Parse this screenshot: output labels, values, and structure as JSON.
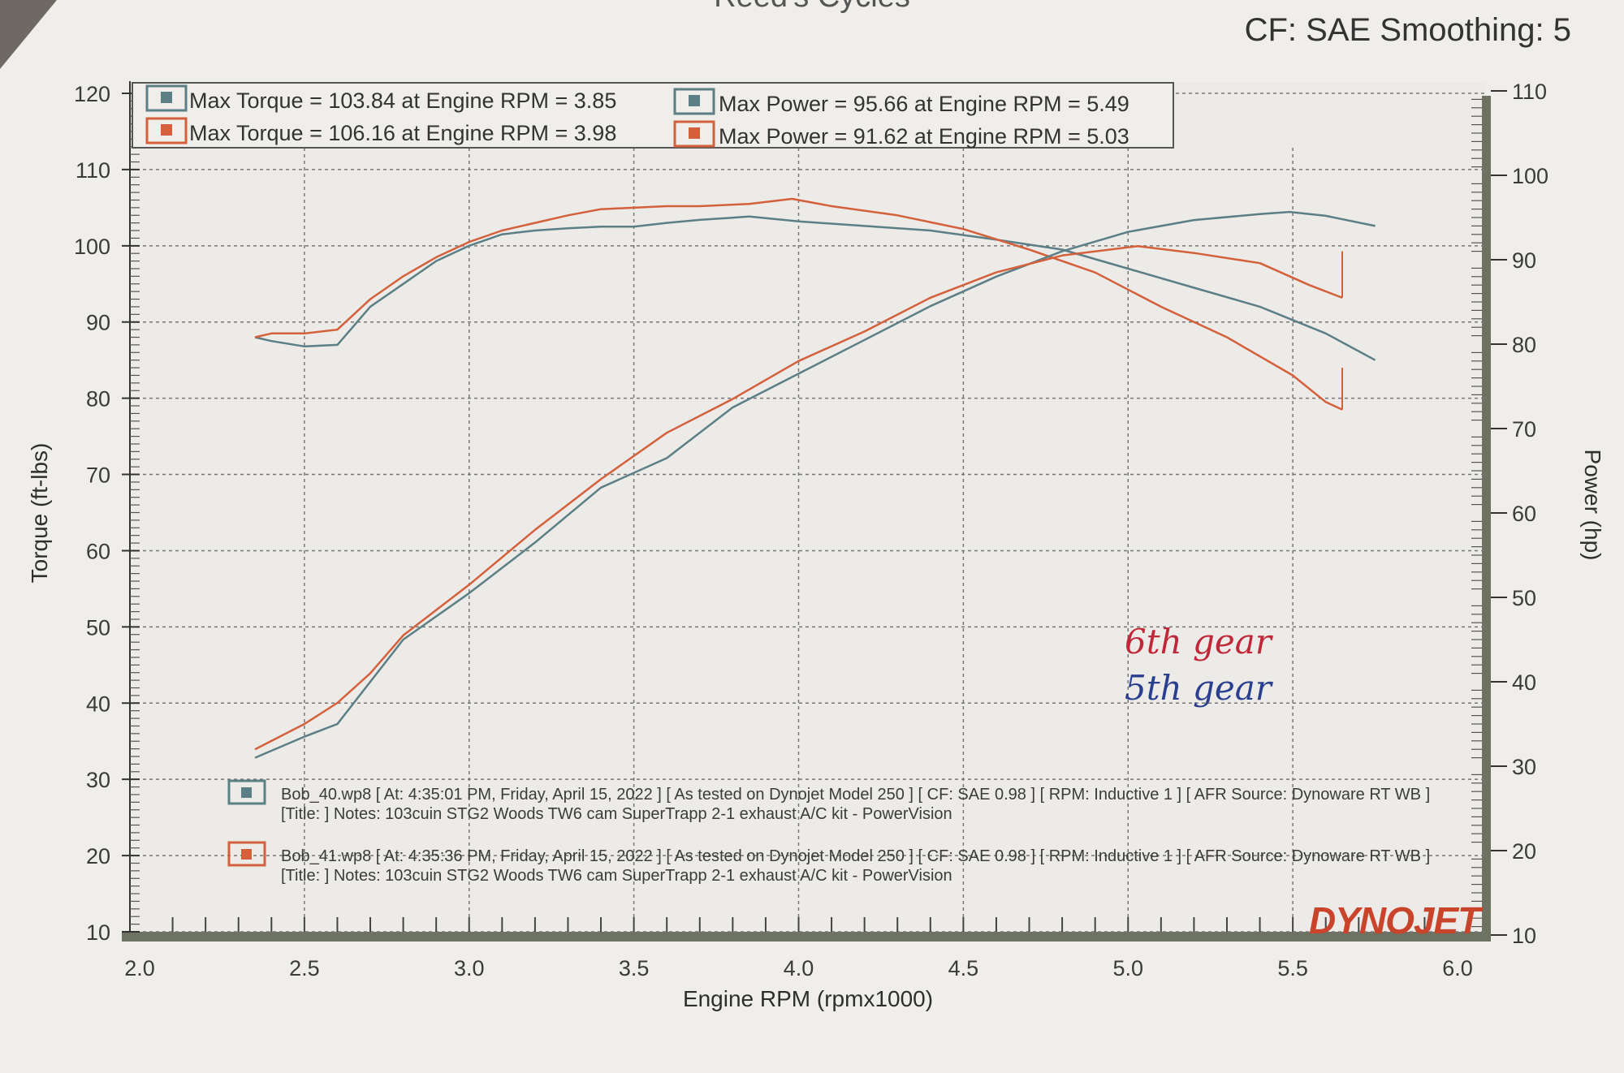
{
  "header": {
    "title_fragment": "Reed's Cycles",
    "settings": "CF: SAE Smoothing: 5"
  },
  "legend": {
    "torque_blue": "Max Torque = 103.84 at Engine RPM = 3.85",
    "torque_red": "Max Torque = 106.16 at Engine RPM = 3.98",
    "power_blue": "Max Power = 95.66 at Engine RPM = 5.49",
    "power_red": "Max Power = 91.62 at Engine RPM = 5.03"
  },
  "runs": [
    {
      "file": "Bob_40.wp8 [ At: 4:35:01 PM, Friday, April 15, 2022 ] [ As tested on Dynojet Model 250 ] [ CF: SAE 0.98 ] [ RPM: Inductive 1 ] [ AFR Source: Dynoware RT WB ]",
      "notes": "[Title: ]  Notes: 103cuin STG2 Woods TW6 cam SuperTrapp 2-1 exhaust A/C kit - PowerVision"
    },
    {
      "file": "Bob_41.wp8 [ At: 4:35:36 PM, Friday, April 15, 2022 ] [ As tested on Dynojet Model 250 ] [ CF: SAE 0.98 ] [ RPM: Inductive 1 ] [ AFR Source: Dynoware RT WB ]",
      "notes": "[Title: ]  Notes: 103cuin STG2 Woods TW6 cam SuperTrapp 2-1 exhaust A/C kit - PowerVision"
    }
  ],
  "annotations": {
    "red": "6th gear",
    "blue": "5th gear"
  },
  "brand": "DYNOJET",
  "colors": {
    "blue": "#5c7f86",
    "red": "#d4603c",
    "hand_red": "#c0283a",
    "hand_blue": "#2b3f8f"
  },
  "chart_data": {
    "type": "line",
    "xlabel": "Engine RPM (rpmx1000)",
    "ylabel": "Torque (ft-lbs)",
    "y2label": "Power (hp)",
    "xlim": [
      2.0,
      6.0
    ],
    "ylim": [
      10,
      120
    ],
    "y2lim": [
      10,
      110
    ],
    "xticks": [
      "2.0",
      "2.5",
      "3.0",
      "3.5",
      "4.0",
      "4.5",
      "5.0",
      "5.5",
      "6.0"
    ],
    "yticks": [
      "10",
      "20",
      "30",
      "40",
      "50",
      "60",
      "70",
      "80",
      "90",
      "100",
      "110",
      "120"
    ],
    "y2ticks": [
      "10",
      "20",
      "30",
      "40",
      "50",
      "60",
      "70",
      "80",
      "90",
      "100",
      "110"
    ],
    "grid": true,
    "series": [
      {
        "name": "Bob_40.wp8",
        "axis": "left",
        "quantity": "torque",
        "color": "blue",
        "x": [
          2.35,
          2.4,
          2.5,
          2.6,
          2.7,
          2.8,
          2.9,
          3.0,
          3.1,
          3.2,
          3.3,
          3.4,
          3.5,
          3.6,
          3.7,
          3.85,
          4.0,
          4.2,
          4.4,
          4.6,
          4.8,
          5.0,
          5.2,
          5.4,
          5.6,
          5.75
        ],
        "y": [
          88,
          87.5,
          86.8,
          87,
          92,
          95,
          98,
          100,
          101.5,
          102,
          102.3,
          102.5,
          102.5,
          103,
          103.4,
          103.84,
          103.2,
          102.6,
          102,
          100.8,
          99.5,
          97,
          94.5,
          92,
          88.5,
          85
        ]
      },
      {
        "name": "Bob_41.wp8",
        "axis": "left",
        "quantity": "torque",
        "color": "red",
        "x": [
          2.35,
          2.4,
          2.5,
          2.6,
          2.7,
          2.8,
          2.9,
          3.0,
          3.1,
          3.2,
          3.3,
          3.4,
          3.5,
          3.6,
          3.7,
          3.85,
          3.98,
          4.1,
          4.3,
          4.5,
          4.7,
          4.9,
          5.1,
          5.3,
          5.5,
          5.6,
          5.65
        ],
        "y": [
          88,
          88.5,
          88.5,
          89,
          93,
          96,
          98.5,
          100.5,
          102,
          103,
          104,
          104.8,
          105,
          105.2,
          105.2,
          105.5,
          106.16,
          105.2,
          104,
          102.2,
          99.5,
          96.5,
          92,
          88,
          83,
          79.5,
          78.5
        ]
      },
      {
        "name": "Bob_40.wp8",
        "axis": "right",
        "quantity": "power",
        "color": "blue",
        "x": [
          2.35,
          2.5,
          2.6,
          2.7,
          2.8,
          3.0,
          3.2,
          3.4,
          3.6,
          3.8,
          4.0,
          4.2,
          4.4,
          4.6,
          4.8,
          5.0,
          5.2,
          5.4,
          5.49,
          5.6,
          5.75
        ],
        "y": [
          31,
          33.5,
          35,
          40,
          45,
          50.5,
          56.5,
          63,
          66.5,
          72.5,
          76.5,
          80.5,
          84.5,
          88,
          91,
          93.3,
          94.7,
          95.4,
          95.66,
          95.2,
          94
        ]
      },
      {
        "name": "Bob_41.wp8",
        "axis": "right",
        "quantity": "power",
        "color": "red",
        "x": [
          2.35,
          2.5,
          2.6,
          2.7,
          2.8,
          3.0,
          3.2,
          3.4,
          3.6,
          3.8,
          4.0,
          4.2,
          4.4,
          4.6,
          4.8,
          5.03,
          5.2,
          5.4,
          5.55,
          5.65
        ],
        "y": [
          32,
          35,
          37.5,
          41,
          45.5,
          51.5,
          58,
          64,
          69.5,
          73.5,
          78,
          81.5,
          85.5,
          88.5,
          90.5,
          91.62,
          90.8,
          89.6,
          87,
          85.5
        ]
      }
    ]
  }
}
